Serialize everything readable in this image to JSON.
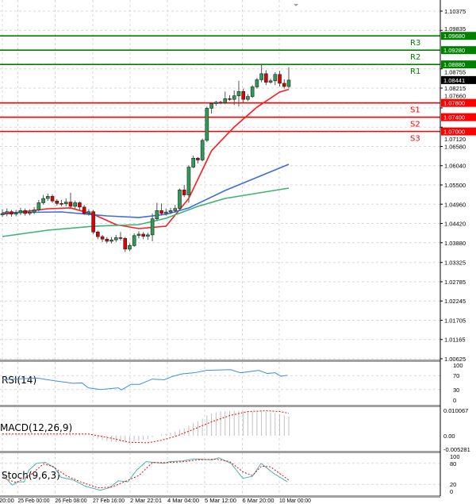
{
  "chart_data": [
    {
      "type": "candlestick",
      "title": "",
      "ylim": [
        1.00625,
        1.10375
      ],
      "grid": true,
      "price_ticks": [
        "1.10375",
        "1.09835",
        "1.08755",
        "1.08215",
        "1.07660",
        "1.07120",
        "1.06580",
        "1.06040",
        "1.05500",
        "1.04960",
        "1.04420",
        "1.03880",
        "1.03325",
        "1.02785",
        "1.02245",
        "1.01705",
        "1.01165",
        "1.00625"
      ],
      "time_labels": [
        {
          "label": "20:00",
          "index": 0
        },
        {
          "label": "25 Feb 00:00",
          "index": 3.4
        },
        {
          "label": "26 Feb 08:00",
          "index": 11.6
        },
        {
          "label": "27 Feb 16:00",
          "index": 19.9
        },
        {
          "label": "2 Mar 22:01",
          "index": 28.1
        },
        {
          "label": "4 Mar 04:00",
          "index": 36.3
        },
        {
          "label": "5 Mar 12:00",
          "index": 44.5
        },
        {
          "label": "6 Mar 20:00",
          "index": 52.8
        },
        {
          "label": "10 Mar 00:00",
          "index": 60.9
        }
      ],
      "current_price": "1.08441",
      "colors": {
        "bull": "#2e9b57",
        "bear": "#e00000",
        "current": "#000000"
      },
      "levels": [
        {
          "name": "R3",
          "value": 1.0968,
          "label": "1.09680",
          "color": "#008000"
        },
        {
          "name": "R2",
          "value": 1.0928,
          "label": "1.09280",
          "color": "#008000"
        },
        {
          "name": "R1",
          "value": 1.0888,
          "label": "1.08880",
          "color": "#008000"
        },
        {
          "name": "S1",
          "value": 1.078,
          "label": "1.07800",
          "color": "#ff0000"
        },
        {
          "name": "S2",
          "value": 1.074,
          "label": "1.07400",
          "color": "#ff0000"
        },
        {
          "name": "S3",
          "value": 1.07,
          "label": "1.07000",
          "color": "#ff0000"
        }
      ],
      "candles": [
        [
          1.0466,
          1.0482,
          1.046,
          1.047
        ],
        [
          1.047,
          1.0484,
          1.0462,
          1.0475
        ],
        [
          1.0475,
          1.048,
          1.0461,
          1.0468
        ],
        [
          1.0468,
          1.048,
          1.0462,
          1.0472
        ],
        [
          1.0472,
          1.0486,
          1.0466,
          1.0478
        ],
        [
          1.0478,
          1.0484,
          1.0464,
          1.047
        ],
        [
          1.047,
          1.0482,
          1.0465,
          1.0474
        ],
        [
          1.0474,
          1.0488,
          1.0468,
          1.048
        ],
        [
          1.048,
          1.0508,
          1.0476,
          1.05
        ],
        [
          1.05,
          1.0522,
          1.0495,
          1.0512
        ],
        [
          1.0512,
          1.0526,
          1.0506,
          1.0518
        ],
        [
          1.0518,
          1.0524,
          1.05,
          1.0505
        ],
        [
          1.0505,
          1.051,
          1.0492,
          1.0498
        ],
        [
          1.0498,
          1.0508,
          1.049,
          1.0497
        ],
        [
          1.0497,
          1.0512,
          1.049,
          1.0502
        ],
        [
          1.0502,
          1.0528,
          1.0486,
          1.049
        ],
        [
          1.049,
          1.0506,
          1.0484,
          1.05
        ],
        [
          1.05,
          1.0504,
          1.048,
          1.0488
        ],
        [
          1.0488,
          1.0494,
          1.0466,
          1.047
        ],
        [
          1.047,
          1.0482,
          1.0464,
          1.0475
        ],
        [
          1.0475,
          1.048,
          1.0412,
          1.0418
        ],
        [
          1.0418,
          1.0422,
          1.0398,
          1.0405
        ],
        [
          1.0405,
          1.041,
          1.039,
          1.0398
        ],
        [
          1.0398,
          1.0404,
          1.0386,
          1.0392
        ],
        [
          1.0392,
          1.0404,
          1.0386,
          1.0396
        ],
        [
          1.0396,
          1.041,
          1.039,
          1.0402
        ],
        [
          1.0402,
          1.0418,
          1.0394,
          1.04
        ],
        [
          1.04,
          1.0404,
          1.0362,
          1.037
        ],
        [
          1.037,
          1.0386,
          1.0364,
          1.038
        ],
        [
          1.038,
          1.0414,
          1.0376,
          1.0408
        ],
        [
          1.0408,
          1.042,
          1.04,
          1.0412
        ],
        [
          1.0412,
          1.0418,
          1.0398,
          1.0406
        ],
        [
          1.0406,
          1.0416,
          1.0396,
          1.041
        ],
        [
          1.041,
          1.047,
          1.0392,
          1.0455
        ],
        [
          1.0455,
          1.05,
          1.045,
          1.0478
        ],
        [
          1.0478,
          1.0498,
          1.0464,
          1.047
        ],
        [
          1.047,
          1.0484,
          1.0464,
          1.0474
        ],
        [
          1.0474,
          1.0486,
          1.0468,
          1.0478
        ],
        [
          1.0478,
          1.0494,
          1.0472,
          1.0484
        ],
        [
          1.0484,
          1.054,
          1.048,
          1.0536
        ],
        [
          1.0536,
          1.055,
          1.0516,
          1.0522
        ],
        [
          1.0522,
          1.0606,
          1.05,
          1.06
        ],
        [
          1.06,
          1.0632,
          1.0596,
          1.0625
        ],
        [
          1.0625,
          1.0628,
          1.061,
          1.062
        ],
        [
          1.062,
          1.068,
          1.0616,
          1.0675
        ],
        [
          1.0675,
          1.077,
          1.067,
          1.0765
        ],
        [
          1.0765,
          1.0782,
          1.075,
          1.0778
        ],
        [
          1.0778,
          1.0786,
          1.0772,
          1.0782
        ],
        [
          1.0782,
          1.0786,
          1.0776,
          1.078
        ],
        [
          1.078,
          1.0812,
          1.0776,
          1.0792
        ],
        [
          1.0792,
          1.0802,
          1.0786,
          1.079
        ],
        [
          1.079,
          1.0815,
          1.0774,
          1.08
        ],
        [
          1.08,
          1.0842,
          1.077,
          1.0812
        ],
        [
          1.0812,
          1.082,
          1.078,
          1.079
        ],
        [
          1.079,
          1.0805,
          1.0785,
          1.0798
        ],
        [
          1.0798,
          1.083,
          1.0794,
          1.0825
        ],
        [
          1.0825,
          1.085,
          1.082,
          1.0845
        ],
        [
          1.0845,
          1.089,
          1.0838,
          1.0862
        ],
        [
          1.0862,
          1.0872,
          1.083,
          1.0838
        ],
        [
          1.0838,
          1.0848,
          1.0834,
          1.0842
        ],
        [
          1.0842,
          1.0866,
          1.083,
          1.086
        ],
        [
          1.086,
          1.087,
          1.0826,
          1.0835
        ],
        [
          1.0835,
          1.0846,
          1.082,
          1.0826
        ],
        [
          1.0826,
          1.088,
          1.082,
          1.0844
        ]
      ],
      "moving_averages": [
        {
          "color": "#ff1a1a",
          "points": [
            [
              0,
              1.04676
            ],
            [
              10,
              1.04832
            ],
            [
              15,
              1.04855
            ],
            [
              20,
              1.04676
            ],
            [
              25,
              1.04387
            ],
            [
              30,
              1.04276
            ],
            [
              36,
              1.04342
            ],
            [
              41,
              1.05122
            ],
            [
              46,
              1.06457
            ],
            [
              51,
              1.07125
            ],
            [
              56,
              1.07681
            ],
            [
              61,
              1.08104
            ],
            [
              63,
              1.0818
            ]
          ]
        },
        {
          "color": "#3d6be0",
          "points": [
            [
              0,
              1.04721
            ],
            [
              13,
              1.04743
            ],
            [
              23,
              1.04632
            ],
            [
              30,
              1.04587
            ],
            [
              36,
              1.04676
            ],
            [
              41,
              1.04855
            ],
            [
              49,
              1.05344
            ],
            [
              63,
              1.06079
            ]
          ]
        },
        {
          "color": "#3cb371",
          "points": [
            [
              0,
              1.04053
            ],
            [
              10,
              1.04231
            ],
            [
              20,
              1.04342
            ],
            [
              30,
              1.04387
            ],
            [
              36,
              1.04565
            ],
            [
              43,
              1.04899
            ],
            [
              49,
              1.05122
            ],
            [
              63,
              1.05411
            ]
          ]
        }
      ]
    },
    {
      "type": "line",
      "label": "RSI(14)",
      "ylim": [
        0,
        100
      ],
      "ticks": [
        "100",
        "70",
        "30",
        "0"
      ],
      "color": "#3d8fe8",
      "points": [
        [
          0,
          58
        ],
        [
          7.5,
          63
        ],
        [
          11.5,
          55
        ],
        [
          15.5,
          48
        ],
        [
          17.5,
          49
        ],
        [
          18.9,
          35
        ],
        [
          21.5,
          30
        ],
        [
          25.5,
          35
        ],
        [
          26.2,
          29
        ],
        [
          28.3,
          45
        ],
        [
          30.2,
          45
        ],
        [
          33,
          60
        ],
        [
          35.6,
          58
        ],
        [
          37.5,
          68
        ],
        [
          39.6,
          75
        ],
        [
          42.2,
          78
        ],
        [
          44.9,
          85
        ],
        [
          50.2,
          87
        ],
        [
          52.4,
          78
        ],
        [
          56.4,
          85
        ],
        [
          58.3,
          76
        ],
        [
          60,
          78
        ],
        [
          61.3,
          68
        ],
        [
          62.7,
          71
        ]
      ]
    },
    {
      "type": "bar+line",
      "label": "MACD(12,26,9)",
      "ylim": [
        -0.005281,
        0.010067
      ],
      "ticks": [
        "0.010067",
        "0.00",
        "-0.005281"
      ],
      "histogram_color": "#c0c0c0",
      "signal_color": "#ff0000",
      "histogram": [
        0.0005,
        0.0005,
        0.0005,
        0.0005,
        0.0005,
        0.0005,
        0.0005,
        0.0005,
        0.0005,
        0.0005,
        0.0005,
        0.0005,
        0.0005,
        0.0005,
        0.0005,
        0.0005,
        0.0005,
        0.0005,
        0.0005,
        0.0002,
        -0.0005,
        -0.0012,
        -0.0017,
        -0.0021,
        -0.0024,
        -0.0025,
        -0.0025,
        -0.0026,
        -0.0024,
        -0.0022,
        -0.002,
        -0.0017,
        -0.0013,
        -0.0006,
        0.0,
        0.0004,
        0.0008,
        0.0012,
        0.0017,
        0.0025,
        0.003,
        0.004,
        0.005,
        0.0058,
        0.0068,
        0.008,
        0.0088,
        0.0093,
        0.0096,
        0.0098,
        0.0099,
        0.0099,
        0.0099,
        0.0097,
        0.0096,
        0.0096,
        0.0097,
        0.0097,
        0.0094,
        0.0092,
        0.009,
        0.0086,
        0.0081,
        0.0076
      ],
      "signal": [
        [
          0,
          0.0007
        ],
        [
          19,
          0.0007
        ],
        [
          24,
          -0.001
        ],
        [
          28,
          -0.0026
        ],
        [
          32,
          -0.0028
        ],
        [
          35,
          -0.0018
        ],
        [
          38,
          -0.0003
        ],
        [
          42,
          0.0025
        ],
        [
          46,
          0.0055
        ],
        [
          50,
          0.008
        ],
        [
          54,
          0.0096
        ],
        [
          58,
          0.0099
        ],
        [
          61,
          0.0096
        ],
        [
          63,
          0.0089
        ]
      ]
    },
    {
      "type": "line",
      "label": "Stoch(9,6,3)",
      "ylim": [
        0,
        100
      ],
      "ticks": [
        "100",
        "80",
        "20",
        "0"
      ],
      "series": [
        {
          "color": "#40b8b0",
          "dashed": false,
          "points": [
            [
              0,
              47
            ],
            [
              2.2,
              18
            ],
            [
              3.5,
              27
            ],
            [
              4.8,
              27
            ],
            [
              5.8,
              60
            ],
            [
              7.5,
              80
            ],
            [
              9.4,
              83
            ],
            [
              11.5,
              67
            ],
            [
              12.9,
              40
            ],
            [
              15.5,
              33
            ],
            [
              18.2,
              15
            ],
            [
              21.5,
              3
            ],
            [
              23.5,
              10
            ],
            [
              25.5,
              30
            ],
            [
              27.6,
              27
            ],
            [
              29.5,
              60
            ],
            [
              31.6,
              85
            ],
            [
              35.6,
              80
            ],
            [
              36.8,
              85
            ],
            [
              39.6,
              87
            ],
            [
              42.2,
              93
            ],
            [
              46.2,
              90
            ],
            [
              47.6,
              96
            ],
            [
              50.3,
              80
            ],
            [
              52.9,
              37
            ],
            [
              55,
              43
            ],
            [
              56.9,
              80
            ],
            [
              59.5,
              53
            ],
            [
              62.7,
              27
            ]
          ]
        },
        {
          "color": "#ff0000",
          "dashed": true,
          "points": [
            [
              0,
              40
            ],
            [
              3,
              25
            ],
            [
              6,
              45
            ],
            [
              9,
              78
            ],
            [
              11,
              72
            ],
            [
              14,
              45
            ],
            [
              17,
              28
            ],
            [
              21,
              10
            ],
            [
              24,
              12
            ],
            [
              27,
              28
            ],
            [
              30,
              45
            ],
            [
              33,
              82
            ],
            [
              36,
              82
            ],
            [
              40,
              85
            ],
            [
              43,
              90
            ],
            [
              47,
              92
            ],
            [
              50,
              85
            ],
            [
              53,
              55
            ],
            [
              55,
              45
            ],
            [
              57,
              72
            ],
            [
              59,
              70
            ],
            [
              63,
              32
            ]
          ]
        }
      ]
    }
  ]
}
